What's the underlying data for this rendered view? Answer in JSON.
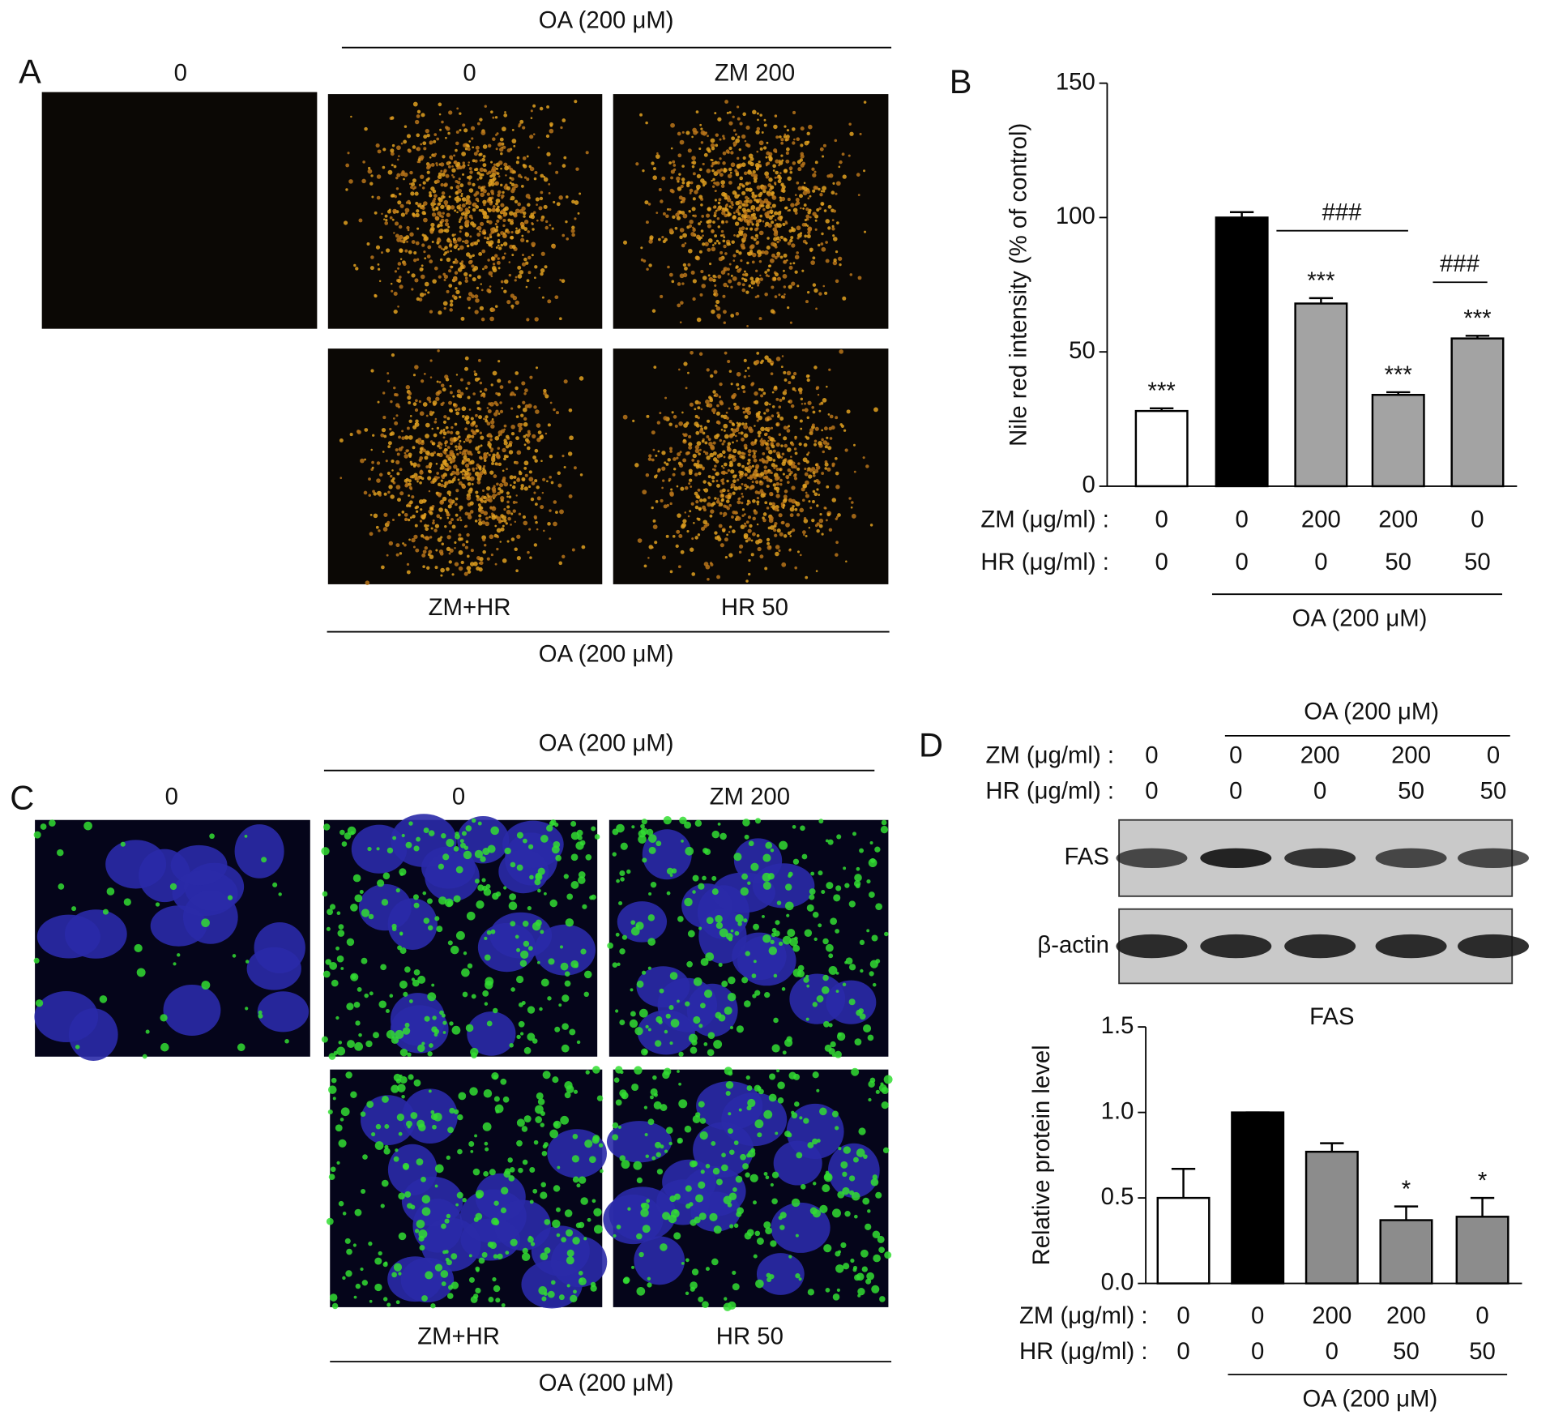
{
  "panel_a": {
    "label": "A",
    "top_group": "OA (200 μM)",
    "control_title": "0",
    "titles": [
      "0",
      "ZM 200"
    ],
    "bottom_titles": [
      "ZM+HR",
      "HR 50"
    ],
    "bottom_group": "OA (200 μM)"
  },
  "panel_c": {
    "label": "C",
    "top_group": "OA (200 μM)",
    "control_title": "0",
    "titles": [
      "0",
      "ZM 200"
    ],
    "bottom_titles": [
      "ZM+HR",
      "HR 50"
    ],
    "bottom_group": "OA (200 μM)"
  },
  "chart_data": [
    {
      "type": "bar",
      "label": "B",
      "ylabel": "Nile red intensity (% of control)",
      "ylim": [
        0,
        150
      ],
      "yticks": [
        0,
        50,
        100,
        150
      ],
      "values": [
        28,
        100,
        68,
        34,
        55
      ],
      "errors": [
        1,
        2,
        2,
        1,
        1
      ],
      "colors": [
        "#ffffff",
        "#000000",
        "#a3a3a3",
        "#a3a3a3",
        "#a3a3a3"
      ],
      "significance": [
        "***",
        null,
        "***",
        "***",
        "***"
      ],
      "comparisons": [
        {
          "label": "###",
          "between": [
            1,
            3
          ]
        },
        {
          "label": "###",
          "between": [
            3,
            4
          ]
        }
      ],
      "dose_rows": [
        {
          "label": "ZM (μg/ml) :",
          "values": [
            0,
            0,
            200,
            200,
            0
          ]
        },
        {
          "label": "HR (μg/ml) :",
          "values": [
            0,
            0,
            0,
            50,
            50
          ]
        }
      ],
      "group": {
        "label": "OA (200 μM)",
        "from": 1,
        "to": 4
      }
    },
    {
      "type": "bar",
      "title": "FAS",
      "ylabel": "Relative protein level",
      "ylim": [
        0,
        1.5
      ],
      "yticks": [
        {
          "value": 0,
          "label": "0.0"
        },
        0.5,
        {
          "value": 1,
          "label": "1.0"
        },
        1.5
      ],
      "values": [
        0.5,
        1.0,
        0.77,
        0.37,
        0.39
      ],
      "errors": [
        0.17,
        0,
        0.05,
        0.08,
        0.11
      ],
      "colors": [
        "#ffffff",
        "#000000",
        "#8c8c8c",
        "#8c8c8c",
        "#8c8c8c"
      ],
      "significance": [
        null,
        null,
        null,
        "*",
        "*"
      ],
      "dose_rows": [
        {
          "label": "ZM (μg/ml) :",
          "values": [
            0,
            0,
            200,
            200,
            0
          ]
        },
        {
          "label": "HR (μg/ml) :",
          "values": [
            0,
            0,
            0,
            50,
            50
          ]
        }
      ],
      "group": {
        "label": "OA (200 μM)",
        "from": 1,
        "to": 4
      }
    }
  ],
  "western_blot": {
    "label": "D",
    "group": "OA (200 μM)",
    "dose_rows": [
      {
        "label": "ZM (μg/ml) :",
        "values": [
          0,
          0,
          200,
          200,
          0
        ]
      },
      {
        "label": "HR (μg/ml) :",
        "values": [
          0,
          0,
          0,
          50,
          50
        ]
      }
    ],
    "bands": [
      "FAS",
      "β-actin"
    ]
  }
}
